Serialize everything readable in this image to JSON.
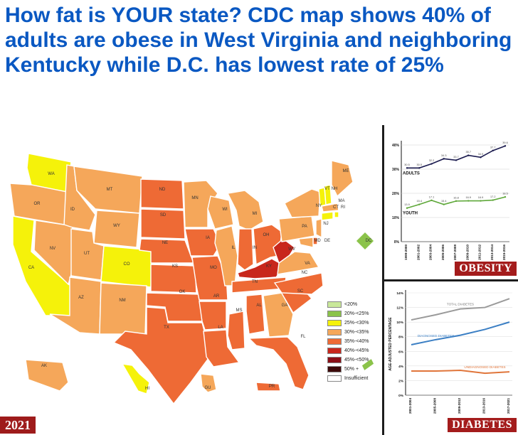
{
  "headline": "How fat is YOUR state? CDC map shows 40% of adults are obese in West Virginia and neighboring Kentucky while D.C. has lowest rate of 25%",
  "map": {
    "year": "2021",
    "states": [
      "WA",
      "OR",
      "CA",
      "ID",
      "NV",
      "MT",
      "WY",
      "UT",
      "AZ",
      "CO",
      "NM",
      "ND",
      "SD",
      "NE",
      "KS",
      "OK",
      "TX",
      "MN",
      "IA",
      "MO",
      "AR",
      "LA",
      "WI",
      "IL",
      "MS",
      "MI",
      "IN",
      "KY",
      "TN",
      "AL",
      "OH",
      "WV",
      "GA",
      "FL",
      "SC",
      "NC",
      "VA",
      "PA",
      "NY",
      "VT",
      "NH",
      "ME",
      "MA",
      "CT",
      "RI",
      "NJ",
      "DE",
      "MD",
      "DC",
      "AK",
      "HI",
      "GU",
      "PR"
    ],
    "colors": {
      "c20_25": "#8bc34a",
      "c25_30": "#f5f20a",
      "c30_35": "#f5a75a",
      "c35_40": "#ee6a35",
      "c40_45": "#c8271c",
      "c45_50": "#8b0f17",
      "c50": "#3d0a0a",
      "insufficient": "#ffffff"
    },
    "legend": [
      {
        "label": "<20%",
        "color": "#c9e89a"
      },
      {
        "label": "20%-<25%",
        "color": "#8bc34a"
      },
      {
        "label": "25%-<30%",
        "color": "#f5f20a"
      },
      {
        "label": "30%-<35%",
        "color": "#f5a75a"
      },
      {
        "label": "35%-<40%",
        "color": "#ee6a35"
      },
      {
        "label": "40%-<45%",
        "color": "#c8271c"
      },
      {
        "label": "45%-<50%",
        "color": "#8b0f17"
      },
      {
        "label": "50% +",
        "color": "#3d0a0a"
      },
      {
        "label": "Insufficient",
        "color": "#ffffff"
      }
    ]
  },
  "obesity": {
    "title": "OBESITY",
    "adults_label": "ADULTS",
    "youth_label": "YOUTH",
    "y_ticks": [
      "40%",
      "30%",
      "20%",
      "10%",
      "0%"
    ],
    "x_ticks": [
      "1999-2000",
      "2001-2002",
      "2003-2004",
      "2005-2006",
      "2007-2008",
      "2009-2010",
      "2011-2012",
      "2013-2014",
      "2015-2016"
    ],
    "adults_color": "#1a1a4e",
    "youth_color": "#5fa83a"
  },
  "diabetes": {
    "title": "DIABETES",
    "ylabel": "AGE-ADJUSTED PERCENTAGE",
    "y_ticks": [
      "14%",
      "12%",
      "10%",
      "8%",
      "6%",
      "4%",
      "2%",
      "0%"
    ],
    "x_ticks": [
      "2001-2004",
      "2005-2008",
      "2009-2012",
      "2013-2016",
      "2017-2021"
    ],
    "total_label": "TOTAL DIABETES",
    "diagnosed_label": "DIAGNOSED DIABETES",
    "undiagnosed_label": "UNDIAGNOSED DIABETES",
    "total_color": "#9a9a9a",
    "diagnosed_color": "#3b7fc4",
    "undiagnosed_color": "#e0753a"
  },
  "chart_data": [
    {
      "type": "line",
      "x": [
        "1999-2000",
        "2001-2002",
        "2003-2004",
        "2005-2006",
        "2007-2008",
        "2009-2010",
        "2011-2012",
        "2013-2014",
        "2015-2016"
      ],
      "series": [
        {
          "name": "ADULTS",
          "values": [
            30.5,
            30.5,
            32.2,
            34.3,
            33.7,
            35.7,
            34.9,
            37.7,
            39.6
          ]
        },
        {
          "name": "YOUTH",
          "values": [
            13.9,
            15.4,
            17.1,
            15.4,
            16.8,
            16.9,
            16.9,
            17.2,
            18.5
          ]
        }
      ],
      "ylim": [
        0,
        40
      ],
      "title": "OBESITY"
    },
    {
      "type": "line",
      "x": [
        "2001-2004",
        "2005-2008",
        "2009-2012",
        "2013-2016",
        "2017-2021"
      ],
      "series": [
        {
          "name": "TOTAL DIABETES",
          "values": [
            10.3,
            11.0,
            11.8,
            12.0,
            13.2
          ]
        },
        {
          "name": "DIAGNOSED DIABETES",
          "values": [
            6.9,
            7.6,
            8.2,
            9.0,
            10.0
          ]
        },
        {
          "name": "UNDIAGNOSED DIABETES",
          "values": [
            3.3,
            3.3,
            3.4,
            3.0,
            3.2
          ]
        }
      ],
      "ylim": [
        0,
        14
      ],
      "ylabel": "AGE-ADJUSTED PERCENTAGE",
      "title": "DIABETES"
    }
  ]
}
